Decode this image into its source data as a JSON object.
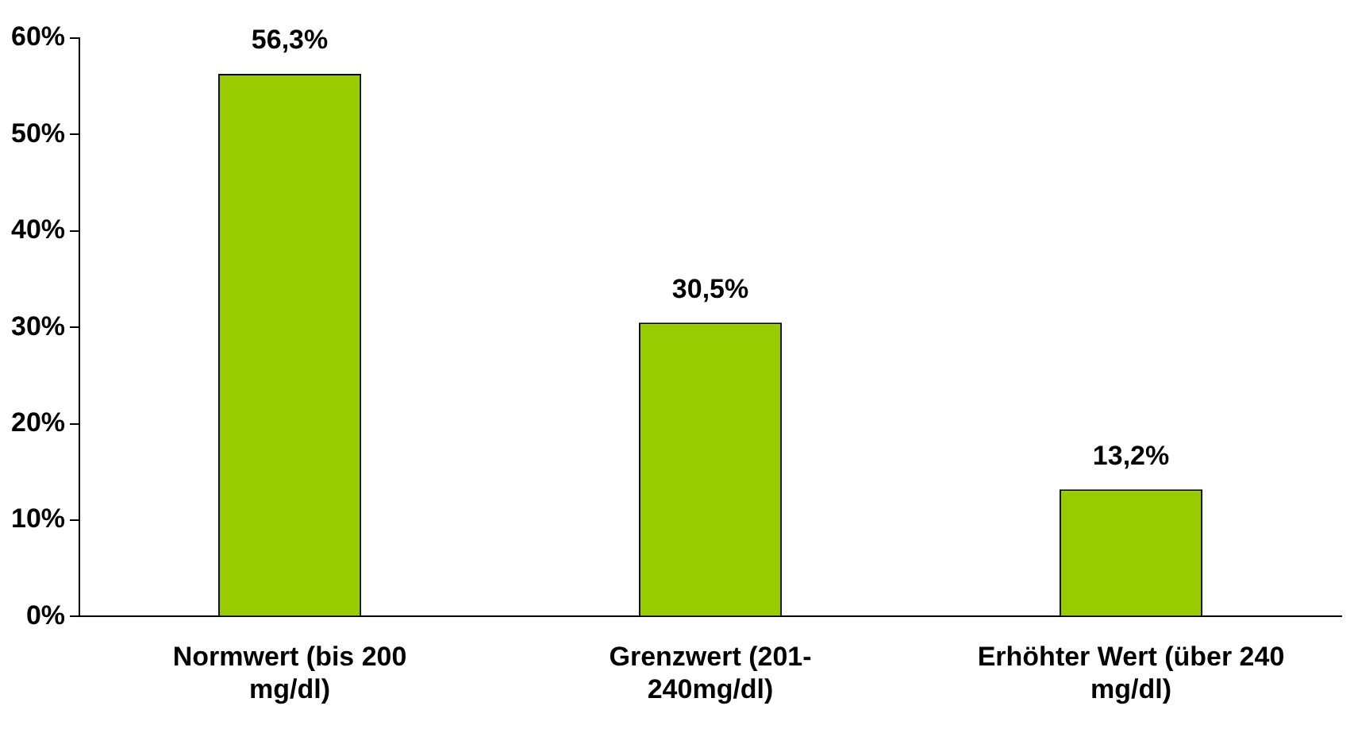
{
  "chart_data": {
    "type": "bar",
    "categories": [
      "Normwert (bis 200 mg/dl)",
      "Grenzwert (201-240mg/dl)",
      "Erhöhter Wert (über 240 mg/dl)"
    ],
    "values": [
      56.3,
      30.5,
      13.2
    ],
    "color": "#99cc00",
    "value_labels": [
      "56,3%",
      "30,5%",
      "13,2%"
    ],
    "ylim": [
      0,
      60
    ],
    "yticks": [
      {
        "value": 0,
        "label": "0%"
      },
      {
        "value": 10,
        "label": "10%"
      },
      {
        "value": 20,
        "label": "20%"
      },
      {
        "value": 30,
        "label": "30%"
      },
      {
        "value": 40,
        "label": "40%"
      },
      {
        "value": 50,
        "label": "50%"
      },
      {
        "value": 60,
        "label": "60%"
      }
    ],
    "grid": false,
    "legend": false
  }
}
